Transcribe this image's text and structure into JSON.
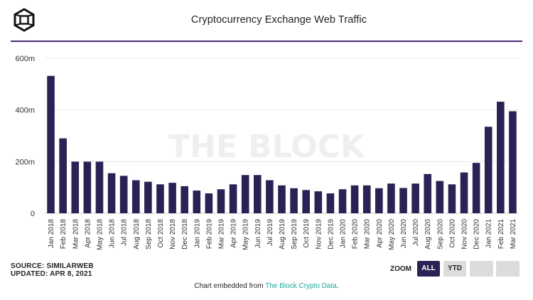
{
  "header": {
    "title": "Cryptocurrency Exchange Web Traffic",
    "logo_icon": "cube-logo-icon"
  },
  "watermark": "THE BLOCK",
  "chart_data": {
    "type": "bar",
    "title": "Cryptocurrency Exchange Web Traffic",
    "xlabel": "",
    "ylabel": "",
    "ylim": [
      0,
      600
    ],
    "yticks": [
      0,
      200,
      400,
      600
    ],
    "ytick_labels": [
      "0",
      "200m",
      "400m",
      "600m"
    ],
    "grid": "horizontal",
    "bar_color": "#2c2155",
    "categories": [
      "Jan 2018",
      "Feb 2018",
      "Mar 2018",
      "Apr 2018",
      "May 2018",
      "Jun 2018",
      "Jul 2018",
      "Aug 2018",
      "Sep 2018",
      "Oct 2018",
      "Nov 2018",
      "Dec 2018",
      "Jan 2019",
      "Feb 2019",
      "Mar 2019",
      "Apr 2019",
      "May 2019",
      "Jun 2019",
      "Jul 2019",
      "Aug 2019",
      "Sep 2019",
      "Oct 2019",
      "Nov 2019",
      "Dec 2019",
      "Jan 2020",
      "Feb 2020",
      "Mar 2020",
      "Apr 2020",
      "May 2020",
      "Jun 2020",
      "Jul 2020",
      "Aug 2020",
      "Sep 2020",
      "Oct 2020",
      "Nov 2020",
      "Dec 2020",
      "Jan 2021",
      "Feb 2021",
      "Mar 2021"
    ],
    "values": [
      532,
      290,
      200,
      200,
      200,
      155,
      145,
      128,
      122,
      112,
      118,
      105,
      88,
      77,
      93,
      112,
      148,
      148,
      128,
      108,
      97,
      90,
      85,
      77,
      93,
      108,
      108,
      97,
      115,
      98,
      115,
      152,
      125,
      112,
      158,
      195,
      335,
      432,
      395
    ]
  },
  "footer": {
    "source": "SOURCE: SIMILARWEB",
    "updated": "UPDATED: APR 8, 2021",
    "zoom_label": "ZOOM",
    "zoom_all": "ALL",
    "zoom_ytd": "YTD",
    "embed_prefix": "Chart embedded from ",
    "embed_link": "The Block Crypto Data",
    "embed_suffix": ".",
    "accent_color": "#4b2a79",
    "link_color": "#1aa59a"
  }
}
